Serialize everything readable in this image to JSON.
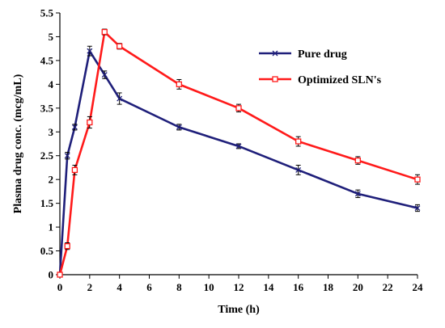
{
  "chart_data": {
    "type": "line",
    "title": "",
    "xlabel": "Time (h)",
    "ylabel": "Plasma drug conc. (mcg/mL)",
    "xlim": [
      0,
      24
    ],
    "ylim": [
      0,
      5.5
    ],
    "x_ticks": [
      0,
      2,
      4,
      6,
      8,
      10,
      12,
      14,
      16,
      18,
      20,
      22,
      24
    ],
    "y_ticks": [
      0,
      0.5,
      1,
      1.5,
      2,
      2.5,
      3,
      3.5,
      4,
      4.5,
      5,
      5.5
    ],
    "grid": false,
    "legend_position": "top-right",
    "error_bars": true,
    "series": [
      {
        "name": "Pure drug",
        "color": "#1f1f7a",
        "marker": "x",
        "x": [
          0,
          0.5,
          1,
          2,
          3,
          4,
          8,
          12,
          16,
          20,
          24
        ],
        "y": [
          0,
          2.5,
          3.1,
          4.7,
          4.2,
          3.7,
          3.1,
          2.7,
          2.2,
          1.7,
          1.4
        ],
        "err": [
          0,
          0.07,
          0.06,
          0.1,
          0.08,
          0.12,
          0.06,
          0.05,
          0.1,
          0.08,
          0.07
        ]
      },
      {
        "name": "Optimized SLN's",
        "color": "#ff1a1a",
        "marker": "square",
        "x": [
          0,
          0.5,
          1,
          2,
          3,
          4,
          8,
          12,
          16,
          20,
          24
        ],
        "y": [
          0,
          0.6,
          2.2,
          3.2,
          5.1,
          4.8,
          4.0,
          3.5,
          2.8,
          2.4,
          2.0
        ],
        "err": [
          0,
          0.07,
          0.1,
          0.12,
          0.06,
          0.06,
          0.1,
          0.08,
          0.1,
          0.08,
          0.1
        ]
      }
    ]
  }
}
